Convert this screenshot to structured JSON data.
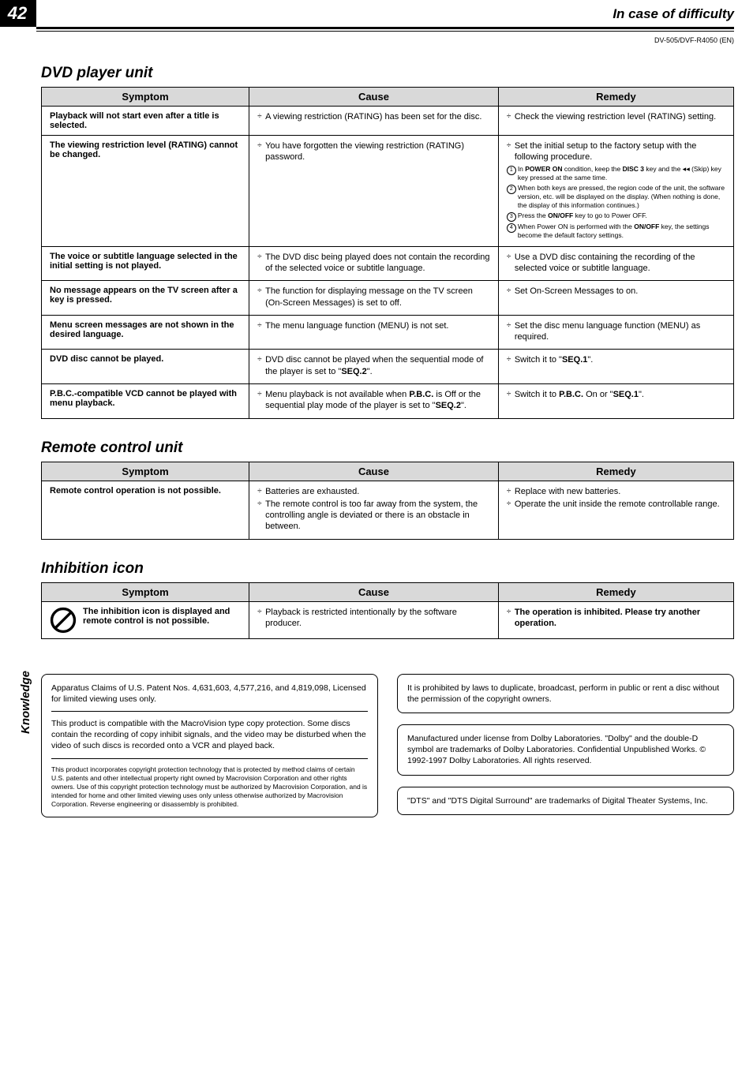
{
  "page": {
    "number": "42",
    "section_header": "In case of difficulty",
    "model": "DV-505/DVF-R4050 (EN)"
  },
  "sections": [
    {
      "title": "DVD player unit",
      "headers": {
        "symptom": "Symptom",
        "cause": "Cause",
        "remedy": "Remedy"
      },
      "rows": [
        {
          "symptom": "Playback will not start even after a title is selected.",
          "cause": [
            "A viewing restriction (RATING) has been set for the disc."
          ],
          "remedy": [
            "Check the viewing restriction level (RATING) setting."
          ]
        },
        {
          "symptom": "The viewing restriction level (RATING) cannot be changed.",
          "cause": [
            "You have forgotten the viewing restriction (RATING) password."
          ],
          "remedy_main": [
            "Set the initial setup to the factory setup with the following procedure."
          ],
          "remedy_steps": [
            "In <b>POWER ON</b> condition, keep the <b>DISC 3</b> key and the <span class='skip-icon'>◂◂</span> (Skip) key key pressed at the same time.",
            "When both keys are pressed, the region code of the unit, the software version, etc. will be displayed on the display. (When nothing is done, the display of this information continues.)",
            "Press the <b>ON/OFF</b> key to go to Power OFF.",
            "When Power ON is performed with the <b>ON/OFF</b> key, the settings become the default factory settings."
          ]
        },
        {
          "symptom": "The voice or subtitle language selected in the initial setting is not played.",
          "cause": [
            "The DVD disc being played does not contain the recording of the selected voice or subtitle language."
          ],
          "remedy": [
            "Use a DVD disc containing the recording of the selected voice or subtitle language."
          ]
        },
        {
          "symptom": "No message appears on the TV screen after a key is pressed.",
          "cause": [
            "The function for displaying message on the TV screen (On-Screen Messages) is set to off."
          ],
          "remedy": [
            "Set On-Screen Messages to on."
          ]
        },
        {
          "symptom": "Menu screen messages are not shown in the desired language.",
          "cause": [
            "The menu language function (MENU) is not set."
          ],
          "remedy": [
            "Set the disc menu language function (MENU) as required."
          ]
        },
        {
          "symptom": "DVD disc cannot be played.",
          "cause": [
            "DVD disc cannot be played when the sequential mode of the player is set to \"<b>SEQ.2</b>\"."
          ],
          "remedy": [
            "Switch it to \"<b>SEQ.1</b>\"."
          ]
        },
        {
          "symptom": "P.B.C.-compatible VCD cannot be played with menu playback.",
          "cause": [
            "Menu playback is not available when <b>P.B.C.</b> is Off or the sequential play mode of the player is set to \"<b>SEQ.2</b>\"."
          ],
          "remedy": [
            "Switch it to <b>P.B.C.</b> On or \"<b>SEQ.1</b>\"."
          ]
        }
      ]
    },
    {
      "title": "Remote control unit",
      "headers": {
        "symptom": "Symptom",
        "cause": "Cause",
        "remedy": "Remedy"
      },
      "rows": [
        {
          "symptom": "Remote control operation is not possible.",
          "cause": [
            "Batteries are exhausted.",
            "The remote control is too far away from the system, the controlling angle is deviated or there is an obstacle in between."
          ],
          "remedy": [
            "Replace with new batteries.",
            "Operate the unit inside the remote controllable range."
          ]
        }
      ]
    },
    {
      "title": "Inhibition icon",
      "headers": {
        "symptom": "Symptom",
        "cause": "Cause",
        "remedy": "Remedy"
      },
      "has_icon": true,
      "rows": [
        {
          "symptom": "The inhibition icon is displayed and remote control is not possible.",
          "cause": [
            "Playback is restricted intentionally by the software producer."
          ],
          "remedy": [
            "<b>The operation is inhibited. Please try another operation.</b>"
          ]
        }
      ]
    }
  ],
  "side_label": "Knowledge",
  "footer": {
    "left": {
      "p1": "Apparatus Claims of U.S. Patent Nos. 4,631,603, 4,577,216, and 4,819,098, Licensed for limited viewing uses only.",
      "p2": "This product is compatible with the MacroVision type copy protection. Some discs contain the recording of copy inhibit signals, and the video may be disturbed when the video of such discs is recorded onto a VCR and played back.",
      "p3": "This product incorporates copyright protection technology that is protected by method claims of certain U.S. patents and other intellectual property right owned by Macrovision Corporation and other rights owners. Use of this copyright protection technology must be authorized by Macrovision Corporation, and is intended for home and other limited viewing uses only unless otherwise authorized by Macrovision Corporation. Reverse engineering or disassembly is prohibited."
    },
    "right": {
      "b1": "It is prohibited by laws to duplicate, broadcast, perform in public or rent a disc without the permission of the copyright owners.",
      "b2": "Manufactured under license from Dolby Laboratories. \"Dolby\" and the double-D symbol are trademarks of Dolby Laboratories. Confidential Unpublished Works. © 1992-1997 Dolby Laboratories. All rights reserved.",
      "b3": "\"DTS\" and \"DTS Digital Surround\" are trademarks of Digital Theater Systems, Inc."
    }
  }
}
